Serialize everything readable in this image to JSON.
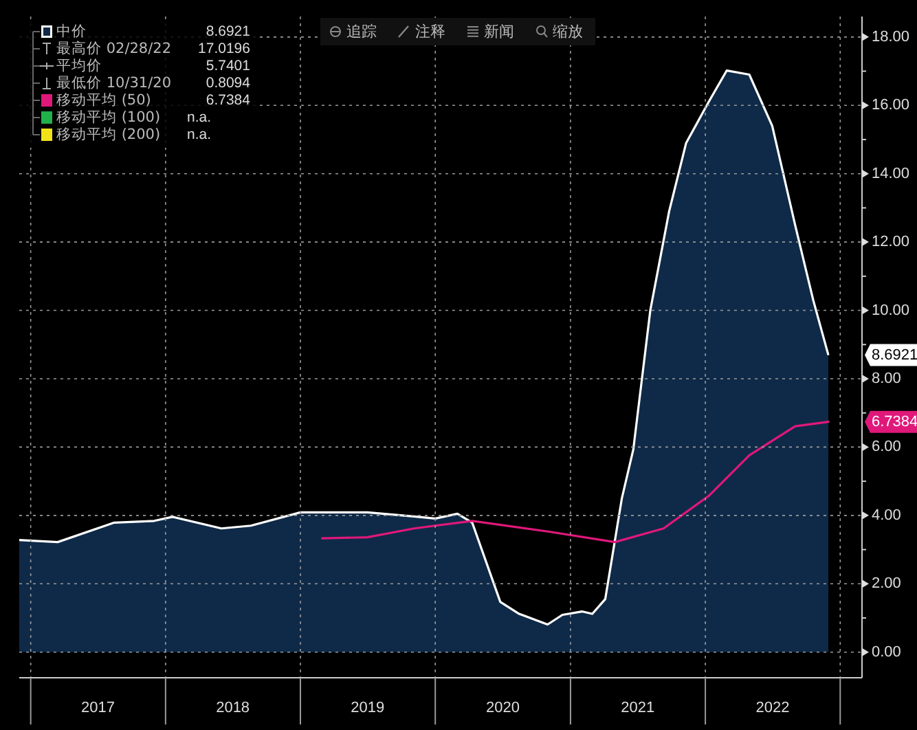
{
  "chart_data": {
    "type": "area",
    "xlim": [
      "2016-12-01",
      "2023-03-01"
    ],
    "ylim": [
      -0.75,
      18.6
    ],
    "xticks": [
      {
        "value": "2017-01-01",
        "label": null
      },
      {
        "value": "2017-07-02",
        "label": "2017"
      },
      {
        "value": "2018-01-01",
        "label": null
      },
      {
        "value": "2018-07-02",
        "label": "2018"
      },
      {
        "value": "2019-01-01",
        "label": null
      },
      {
        "value": "2019-07-02",
        "label": "2019"
      },
      {
        "value": "2020-01-01",
        "label": null
      },
      {
        "value": "2020-07-02",
        "label": "2020"
      },
      {
        "value": "2021-01-01",
        "label": null
      },
      {
        "value": "2021-07-02",
        "label": "2021"
      },
      {
        "value": "2022-01-01",
        "label": null
      },
      {
        "value": "2022-07-02",
        "label": "2022"
      },
      {
        "value": "2023-01-01",
        "label": null
      }
    ],
    "yticks": [
      {
        "value": 0,
        "label": "0.00"
      },
      {
        "value": 1,
        "label": null
      },
      {
        "value": 2,
        "label": "2.00"
      },
      {
        "value": 3,
        "label": null
      },
      {
        "value": 4,
        "label": "4.00"
      },
      {
        "value": 5,
        "label": null
      },
      {
        "value": 6,
        "label": "6.00"
      },
      {
        "value": 7,
        "label": null
      },
      {
        "value": 8,
        "label": "8.00"
      },
      {
        "value": 9,
        "label": null
      },
      {
        "value": 10,
        "label": "10.00"
      },
      {
        "value": 11,
        "label": null
      },
      {
        "value": 12,
        "label": "12.00"
      },
      {
        "value": 13,
        "label": null
      },
      {
        "value": 14,
        "label": "14.00"
      },
      {
        "value": 15,
        "label": null
      },
      {
        "value": 16,
        "label": "16.00"
      },
      {
        "value": 17,
        "label": null
      },
      {
        "value": 18,
        "label": "18.00"
      }
    ],
    "grid": true,
    "legend": "top left",
    "series": [
      {
        "name": "中价",
        "color": "#ffffff",
        "x": [
          "2016-12-01",
          "2017-03-15",
          "2017-08-15",
          "2017-12-01",
          "2018-01-20",
          "2018-06-01",
          "2018-08-20",
          "2019-01-01",
          "2019-07-01",
          "2019-11-05",
          "2020-01-01",
          "2020-03-01",
          "2020-04-10",
          "2020-06-25",
          "2020-08-15",
          "2020-10-31",
          "2020-12-10",
          "2021-02-01",
          "2021-03-01",
          "2021-04-05",
          "2021-05-20",
          "2021-06-20",
          "2021-08-05",
          "2021-09-25",
          "2021-11-10",
          "2022-01-10",
          "2022-02-28",
          "2022-04-30",
          "2022-07-01",
          "2022-09-01",
          "2022-10-20",
          "2022-11-30"
        ],
        "values": [
          3.28,
          3.22,
          3.79,
          3.84,
          3.96,
          3.62,
          3.7,
          4.09,
          4.09,
          3.97,
          3.91,
          4.05,
          3.79,
          1.47,
          1.12,
          0.8094,
          1.09,
          1.19,
          1.12,
          1.55,
          4.5,
          5.93,
          10.0,
          12.9,
          14.9,
          16.1,
          17.0196,
          16.9,
          15.4,
          12.5,
          10.3,
          8.6921
        ]
      },
      {
        "name": "移动平均 (50)",
        "color": "#e0187a",
        "type": "line",
        "x": [
          "2019-03-01",
          "2019-07-01",
          "2019-11-05",
          "2020-04-10",
          "2020-11-01",
          "2021-05-01",
          "2021-09-10",
          "2022-01-10",
          "2022-04-30",
          "2022-09-01",
          "2022-11-30"
        ],
        "values": [
          3.33,
          3.36,
          3.62,
          3.84,
          3.53,
          3.22,
          3.62,
          4.57,
          5.76,
          6.61,
          6.7384
        ]
      },
      {
        "name": "移动平均 (100)",
        "color": "#22b04a",
        "type": "line"
      },
      {
        "name": "移动平均 (200)",
        "color": "#f2e21a",
        "type": "line"
      }
    ],
    "annotations": [
      "8.6921",
      "最高价 02/28/22",
      "17.0196",
      "平均价",
      "5.7401",
      "最低价 10/31/20",
      "0.8094",
      "6.7384",
      "n.a.",
      "n.a.",
      "追踪",
      "注释",
      "新闻",
      "缩放",
      {
        "text": "8.6921",
        "x": "2022-11-30",
        "y": 8.6921
      },
      {
        "text": "6.7384",
        "x": "2022-11-30",
        "y": 6.7384
      }
    ]
  }
}
